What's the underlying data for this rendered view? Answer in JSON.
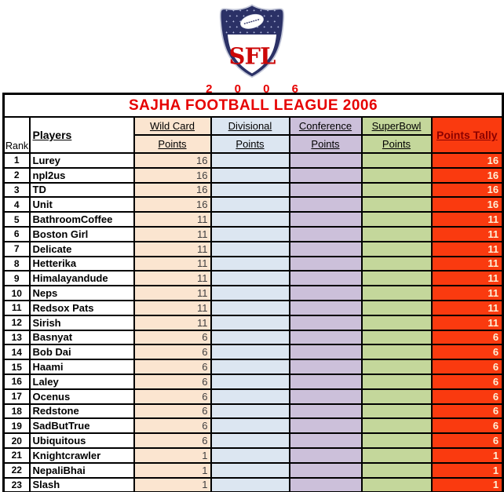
{
  "logo": {
    "abbr": "SFL",
    "year": "2 0 0 6"
  },
  "title": "SAJHA FOOTBALL LEAGUE 2006",
  "table": {
    "rank_header": "Rank",
    "players_header": "Players",
    "round_columns": [
      {
        "label": "Wild Card",
        "sublabel": "Points"
      },
      {
        "label": "Divisional",
        "sublabel": "Points"
      },
      {
        "label": "Conference",
        "sublabel": "Points"
      },
      {
        "label": "SuperBowl",
        "sublabel": "Points"
      }
    ],
    "tally_header": "Points Tally",
    "rows": [
      {
        "rank": "1",
        "player": "Lurey",
        "wild_card": "16",
        "divisional": "",
        "conference": "",
        "superbowl": "",
        "tally": "16"
      },
      {
        "rank": "2",
        "player": "npl2us",
        "wild_card": "16",
        "divisional": "",
        "conference": "",
        "superbowl": "",
        "tally": "16"
      },
      {
        "rank": "3",
        "player": "TD",
        "wild_card": "16",
        "divisional": "",
        "conference": "",
        "superbowl": "",
        "tally": "16"
      },
      {
        "rank": "4",
        "player": "Unit",
        "wild_card": "16",
        "divisional": "",
        "conference": "",
        "superbowl": "",
        "tally": "16"
      },
      {
        "rank": "5",
        "player": "BathroomCoffee",
        "wild_card": "11",
        "divisional": "",
        "conference": "",
        "superbowl": "",
        "tally": "11"
      },
      {
        "rank": "6",
        "player": "Boston Girl",
        "wild_card": "11",
        "divisional": "",
        "conference": "",
        "superbowl": "",
        "tally": "11"
      },
      {
        "rank": "7",
        "player": "Delicate",
        "wild_card": "11",
        "divisional": "",
        "conference": "",
        "superbowl": "",
        "tally": "11"
      },
      {
        "rank": "8",
        "player": "Hetterika",
        "wild_card": "11",
        "divisional": "",
        "conference": "",
        "superbowl": "",
        "tally": "11"
      },
      {
        "rank": "9",
        "player": "Himalayandude",
        "wild_card": "11",
        "divisional": "",
        "conference": "",
        "superbowl": "",
        "tally": "11"
      },
      {
        "rank": "10",
        "player": "Neps",
        "wild_card": "11",
        "divisional": "",
        "conference": "",
        "superbowl": "",
        "tally": "11"
      },
      {
        "rank": "11",
        "player": "Redsox Pats",
        "wild_card": "11",
        "divisional": "",
        "conference": "",
        "superbowl": "",
        "tally": "11"
      },
      {
        "rank": "12",
        "player": "Sirish",
        "wild_card": "11",
        "divisional": "",
        "conference": "",
        "superbowl": "",
        "tally": "11"
      },
      {
        "rank": "13",
        "player": "Basnyat",
        "wild_card": "6",
        "divisional": "",
        "conference": "",
        "superbowl": "",
        "tally": "6"
      },
      {
        "rank": "14",
        "player": "Bob Dai",
        "wild_card": "6",
        "divisional": "",
        "conference": "",
        "superbowl": "",
        "tally": "6"
      },
      {
        "rank": "15",
        "player": "Haami",
        "wild_card": "6",
        "divisional": "",
        "conference": "",
        "superbowl": "",
        "tally": "6"
      },
      {
        "rank": "16",
        "player": "Laley",
        "wild_card": "6",
        "divisional": "",
        "conference": "",
        "superbowl": "",
        "tally": "6"
      },
      {
        "rank": "17",
        "player": "Ocenus",
        "wild_card": "6",
        "divisional": "",
        "conference": "",
        "superbowl": "",
        "tally": "6"
      },
      {
        "rank": "18",
        "player": "Redstone",
        "wild_card": "6",
        "divisional": "",
        "conference": "",
        "superbowl": "",
        "tally": "6"
      },
      {
        "rank": "19",
        "player": "SadButTrue",
        "wild_card": "6",
        "divisional": "",
        "conference": "",
        "superbowl": "",
        "tally": "6"
      },
      {
        "rank": "20",
        "player": "Ubiquitous",
        "wild_card": "6",
        "divisional": "",
        "conference": "",
        "superbowl": "",
        "tally": "6"
      },
      {
        "rank": "21",
        "player": "Knightcrawler",
        "wild_card": "1",
        "divisional": "",
        "conference": "",
        "superbowl": "",
        "tally": "1"
      },
      {
        "rank": "22",
        "player": "NepaliBhai",
        "wild_card": "1",
        "divisional": "",
        "conference": "",
        "superbowl": "",
        "tally": "1"
      },
      {
        "rank": "23",
        "player": "Slash",
        "wild_card": "1",
        "divisional": "",
        "conference": "",
        "superbowl": "",
        "tally": "1"
      }
    ]
  },
  "colors": {
    "title_text": "#E60000",
    "wild_card_bg": "#FBE5D0",
    "divisional_bg": "#DCE6F1",
    "conference_bg": "#CCC0DA",
    "superbowl_bg": "#C4D79B",
    "tally_bg": "#FA3A0F",
    "tally_text": "#FCF0D8",
    "tally_header_text": "#8B0000",
    "value_text": "#3F3F3F",
    "logo_navy": "#2B3166",
    "logo_red": "#CC0707"
  }
}
